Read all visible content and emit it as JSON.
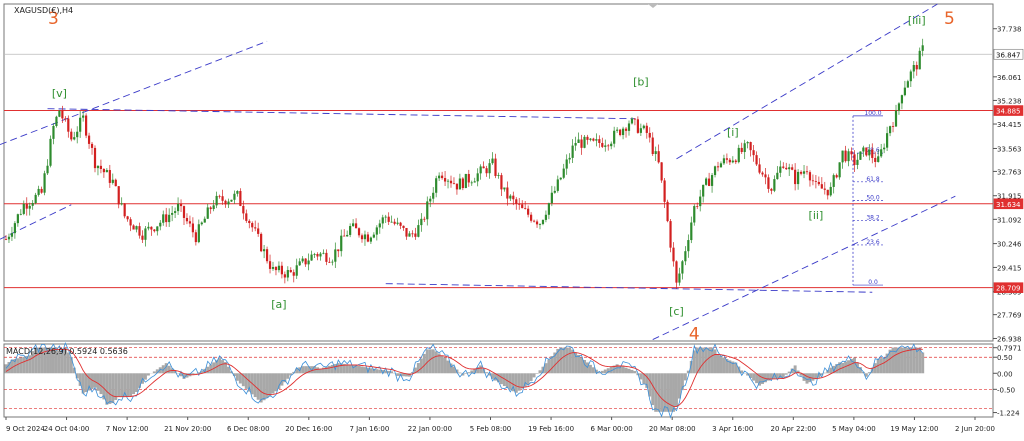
{
  "symbol_label": "XAGUSD(€),H4",
  "colors": {
    "bull": "#2e8b2e",
    "bear": "#d22020",
    "channel": "#3a3ac8",
    "level": "#e03030",
    "wave_green": "#2f8f2f",
    "wave_orange": "#e8642a",
    "macd_hist": "#a8a8a8",
    "macd_line": "#3b8fd8",
    "signal_line": "#e03030"
  },
  "chart_data": {
    "type": "candlestick",
    "price_axis": {
      "ticks": [
        "37.738",
        "36.061",
        "35.238",
        "34.415",
        "33.563",
        "32.763",
        "31.915",
        "31.092",
        "30.246",
        "29.415",
        "28.569",
        "27.769",
        "26.938"
      ],
      "min": 26.85,
      "max": 38.6
    },
    "time_axis": {
      "labels": [
        "9 Oct 2024",
        "24 Oct 04:00",
        "7 Nov 12:00",
        "21 Nov 20:00",
        "6 Dec 08:00",
        "20 Dec 16:00",
        "7 Jan 16:00",
        "22 Jan 00:00",
        "5 Feb 08:00",
        "19 Feb 16:00",
        "6 Mar 00:00",
        "20 Mar 08:00",
        "3 Apr 16:00",
        "20 Apr 22:00",
        "5 May 04:00",
        "19 May 12:00",
        "2 Jun 20:00"
      ]
    },
    "price_tags": [
      {
        "value": "36.847",
        "price": 36.847,
        "style": "current"
      },
      {
        "value": "34.885",
        "price": 34.885,
        "style": "level"
      },
      {
        "value": "31.634",
        "price": 31.634,
        "style": "level"
      },
      {
        "value": "28.709",
        "price": 28.709,
        "style": "level"
      }
    ],
    "horizontal_levels": [
      34.885,
      31.634,
      28.709
    ],
    "wave_labels": [
      {
        "text": "3",
        "color": "orange",
        "price": 37.9,
        "bar": 16
      },
      {
        "text": "[v]",
        "color": "green",
        "price": 35.35,
        "bar": 18
      },
      {
        "text": "[a]",
        "color": "green",
        "price": 28.0,
        "bar": 92
      },
      {
        "text": "[b]",
        "color": "green",
        "price": 35.75,
        "bar": 214
      },
      {
        "text": "[c]",
        "color": "green",
        "price": 27.75,
        "bar": 226
      },
      {
        "text": "4",
        "color": "orange",
        "price": 26.9,
        "bar": 232
      },
      {
        "text": "[i]",
        "color": "green",
        "price": 34.0,
        "bar": 245
      },
      {
        "text": "[ii]",
        "color": "green",
        "price": 31.1,
        "bar": 273
      },
      {
        "text": "[iii]",
        "color": "green",
        "price": 37.9,
        "bar": 307
      },
      {
        "text": "5",
        "color": "orange",
        "price": 37.9,
        "bar": 318
      }
    ],
    "fibonacci": {
      "levels": [
        {
          "label": "100.0",
          "price": 34.7
        },
        {
          "label": "78.6",
          "price": 33.4
        },
        {
          "label": "61.8",
          "price": 32.4
        },
        {
          "label": "50.0",
          "price": 31.75
        },
        {
          "label": "38.2",
          "price": 31.05
        },
        {
          "label": "23.6",
          "price": 30.2
        },
        {
          "label": "0.0",
          "price": 28.8
        }
      ]
    },
    "candle_path": [
      [
        0,
        30.4
      ],
      [
        6,
        31.6
      ],
      [
        12,
        32.0
      ],
      [
        16,
        34.3
      ],
      [
        18,
        34.9
      ],
      [
        22,
        33.9
      ],
      [
        26,
        34.6
      ],
      [
        30,
        33.1
      ],
      [
        36,
        32.4
      ],
      [
        40,
        31.2
      ],
      [
        46,
        30.6
      ],
      [
        52,
        31.0
      ],
      [
        58,
        31.5
      ],
      [
        64,
        30.5
      ],
      [
        70,
        31.7
      ],
      [
        78,
        31.9
      ],
      [
        84,
        30.6
      ],
      [
        90,
        29.3
      ],
      [
        96,
        29.2
      ],
      [
        104,
        29.9
      ],
      [
        110,
        29.8
      ],
      [
        116,
        30.8
      ],
      [
        122,
        30.5
      ],
      [
        128,
        31.2
      ],
      [
        136,
        30.5
      ],
      [
        140,
        30.9
      ],
      [
        146,
        32.8
      ],
      [
        152,
        32.3
      ],
      [
        158,
        32.6
      ],
      [
        164,
        33.0
      ],
      [
        168,
        32.0
      ],
      [
        174,
        31.4
      ],
      [
        180,
        31.0
      ],
      [
        186,
        32.3
      ],
      [
        192,
        33.8
      ],
      [
        198,
        33.7
      ],
      [
        204,
        33.9
      ],
      [
        210,
        34.5
      ],
      [
        216,
        34.1
      ],
      [
        220,
        33.0
      ],
      [
        223,
        31.0
      ],
      [
        226,
        28.8
      ],
      [
        228,
        29.6
      ],
      [
        232,
        31.5
      ],
      [
        236,
        32.3
      ],
      [
        240,
        33.0
      ],
      [
        246,
        33.3
      ],
      [
        250,
        33.6
      ],
      [
        254,
        32.9
      ],
      [
        258,
        32.2
      ],
      [
        262,
        33.1
      ],
      [
        266,
        32.5
      ],
      [
        270,
        32.9
      ],
      [
        273,
        32.2
      ],
      [
        278,
        32.1
      ],
      [
        282,
        33.4
      ],
      [
        286,
        33.1
      ],
      [
        290,
        33.5
      ],
      [
        294,
        33.1
      ],
      [
        298,
        34.4
      ],
      [
        300,
        34.7
      ],
      [
        302,
        35.6
      ],
      [
        304,
        36.0
      ],
      [
        307,
        36.5
      ],
      [
        309,
        37.0
      ]
    ],
    "macd": {
      "label": "MACD(12,26,9) 0.5924 0.5636",
      "main_value": 0.5924,
      "signal_value": 0.5636,
      "ticks": [
        "0.7971",
        "0.50",
        "0.00",
        "-0.50",
        "-1.224"
      ]
    }
  }
}
